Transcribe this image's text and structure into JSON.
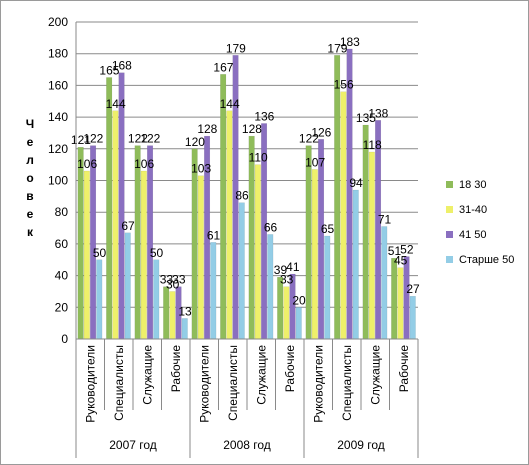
{
  "chart_data": {
    "type": "bar",
    "ylabel": "Ч е л о в е к",
    "ylim": [
      0,
      200
    ],
    "yticks": [
      "0",
      "20",
      "40",
      "60",
      "80",
      "100",
      "120",
      "140",
      "160",
      "180",
      "200"
    ],
    "grid": true,
    "legend_position": "right",
    "groups": [
      {
        "label": "2007 год",
        "categories": [
          "Руководители",
          "Специалисты",
          "Служащие",
          "Рабочие"
        ]
      },
      {
        "label": "2008 год",
        "categories": [
          "Руководители",
          "Специалисты",
          "Служащие",
          "Рабочие"
        ]
      },
      {
        "label": "2009 год",
        "categories": [
          "Руководители",
          "Специалисты",
          "Служащие",
          "Рабочие"
        ]
      }
    ],
    "categories": [
      "Руководители",
      "Специалисты",
      "Служащие",
      "Рабочие",
      "Руководители",
      "Специалисты",
      "Служащие",
      "Рабочие",
      "Руководители",
      "Специалисты",
      "Служащие",
      "Рабочие"
    ],
    "series": [
      {
        "name": "18 30",
        "color": "#8fbc5a",
        "values": [
          121,
          165,
          122,
          33,
          120,
          167,
          128,
          39,
          122,
          179,
          135,
          51
        ]
      },
      {
        "name": "31-40",
        "color": "#eef06a",
        "values": [
          106,
          144,
          106,
          30,
          103,
          144,
          110,
          33,
          107,
          156,
          118,
          45
        ]
      },
      {
        "name": "41 50",
        "color": "#8a6fc0",
        "values": [
          122,
          168,
          122,
          33,
          128,
          179,
          136,
          41,
          126,
          183,
          138,
          52
        ]
      },
      {
        "name": "Старше 50",
        "color": "#93cde6",
        "values": [
          50,
          67,
          50,
          13,
          61,
          86,
          66,
          20,
          65,
          94,
          71,
          27
        ]
      }
    ],
    "data_labels": [
      [
        "121",
        "165",
        "122",
        "33",
        "120",
        "167",
        "128",
        "39",
        "122",
        "179",
        "135",
        "51"
      ],
      [
        "106",
        "144",
        "106",
        "30",
        "103",
        "144",
        "110",
        "33",
        "107",
        "156",
        "118",
        "45"
      ],
      [
        "122",
        "168",
        "122",
        "33",
        "128",
        "179",
        "136",
        "41",
        "126",
        "183",
        "138",
        "52"
      ],
      [
        "50",
        "67",
        "50",
        "13",
        "61",
        "86",
        "66",
        "20",
        "65",
        "94",
        "71",
        "27"
      ]
    ]
  }
}
